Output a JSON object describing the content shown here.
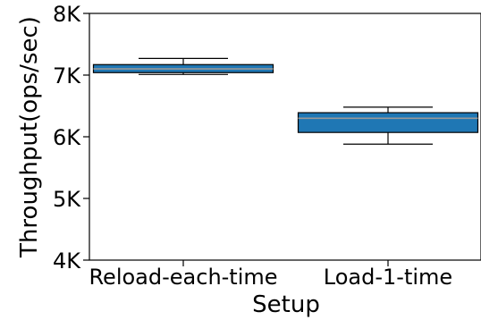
{
  "chart_data": {
    "type": "box",
    "title": "",
    "xlabel": "Setup",
    "ylabel": "Throughput(ops/sec)",
    "ylim": [
      4000,
      8000
    ],
    "yticks": [
      4000,
      5000,
      6000,
      7000,
      8000
    ],
    "ytick_labels": [
      "4K",
      "5K",
      "6K",
      "7K",
      "8K"
    ],
    "categories": [
      "Reload-each-time",
      "Load-1-time"
    ],
    "boxes": [
      {
        "name": "Reload-each-time",
        "whisker_low": 7010,
        "q1": 7040,
        "median": 7100,
        "q3": 7170,
        "whisker_high": 7270
      },
      {
        "name": "Load-1-time",
        "whisker_low": 5880,
        "q1": 6070,
        "median": 6300,
        "q3": 6390,
        "whisker_high": 6480
      }
    ],
    "grid": false,
    "colors": {
      "box_fill": "#1f77b4",
      "median": "#999999",
      "stroke": "#000000"
    }
  }
}
